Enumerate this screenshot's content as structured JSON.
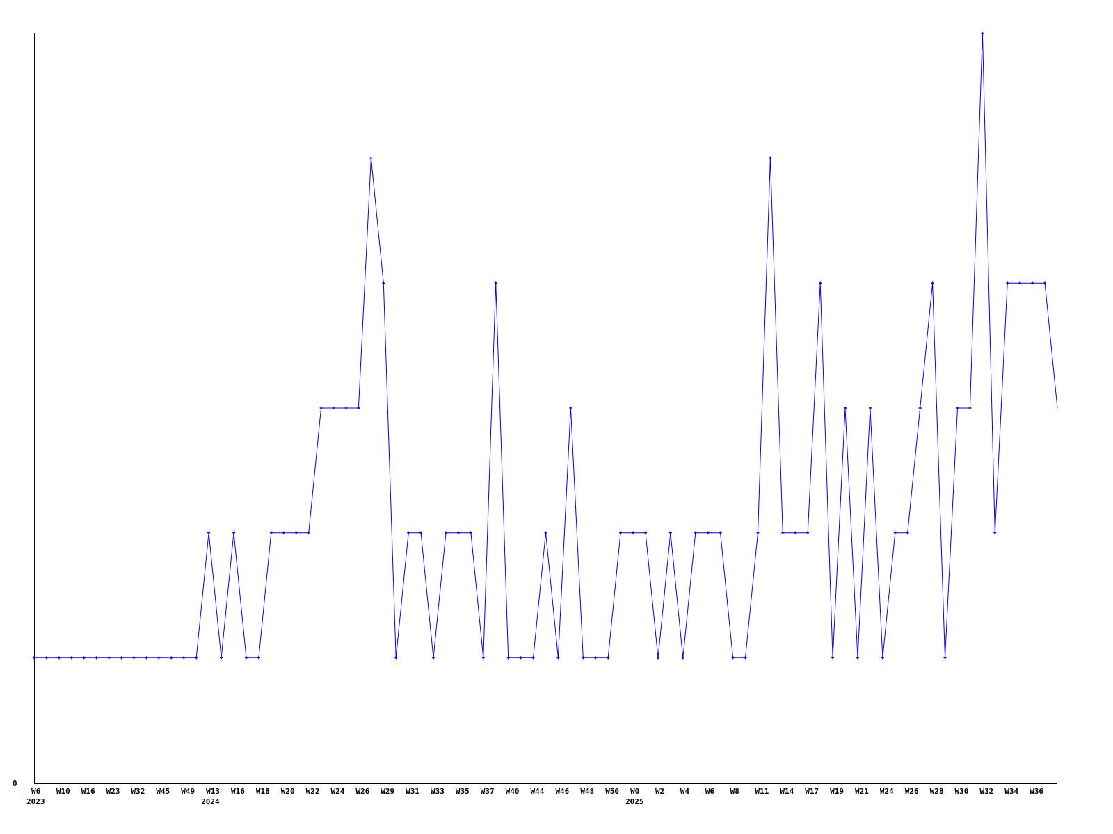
{
  "chart_data": {
    "type": "line",
    "title": "",
    "xlabel": "",
    "ylabel": "",
    "ylim": [
      0,
      6
    ],
    "grid": false,
    "line_color": "#0000ff",
    "y_tick_labels": [
      "0"
    ],
    "x_tick_labels": [
      "W6",
      "W10",
      "W16",
      "W23",
      "W32",
      "W45",
      "W49",
      "W13",
      "W16",
      "W18",
      "W20",
      "W22",
      "W24",
      "W26",
      "W29",
      "W31",
      "W33",
      "W35",
      "W37",
      "W40",
      "W44",
      "W46",
      "W48",
      "W50",
      "W0",
      "W2",
      "W4",
      "W6",
      "W8",
      "W11",
      "W14",
      "W17",
      "W19",
      "W21",
      "W24",
      "W26",
      "W28",
      "W30",
      "W32",
      "W34",
      "W36"
    ],
    "year_labels": [
      {
        "label": "2023",
        "at_tick": 0
      },
      {
        "label": "2024",
        "at_tick": 7
      },
      {
        "label": "2025",
        "at_tick": 24
      }
    ],
    "values": [
      1,
      1,
      1,
      1,
      1,
      1,
      1,
      1,
      1,
      1,
      1,
      1,
      1,
      1,
      2,
      1,
      2,
      1,
      1,
      2,
      2,
      2,
      2,
      3,
      3,
      3,
      3,
      5,
      4,
      1,
      2,
      2,
      1,
      2,
      2,
      2,
      1,
      4,
      1,
      1,
      1,
      2,
      1,
      3,
      1,
      1,
      1,
      2,
      2,
      2,
      1,
      2,
      1,
      2,
      2,
      2,
      1,
      1,
      2,
      5,
      2,
      2,
      2,
      4,
      1,
      3,
      1,
      3,
      1,
      2,
      2,
      3,
      4,
      1,
      3,
      3,
      6,
      2,
      4,
      4,
      4,
      4,
      3
    ]
  }
}
